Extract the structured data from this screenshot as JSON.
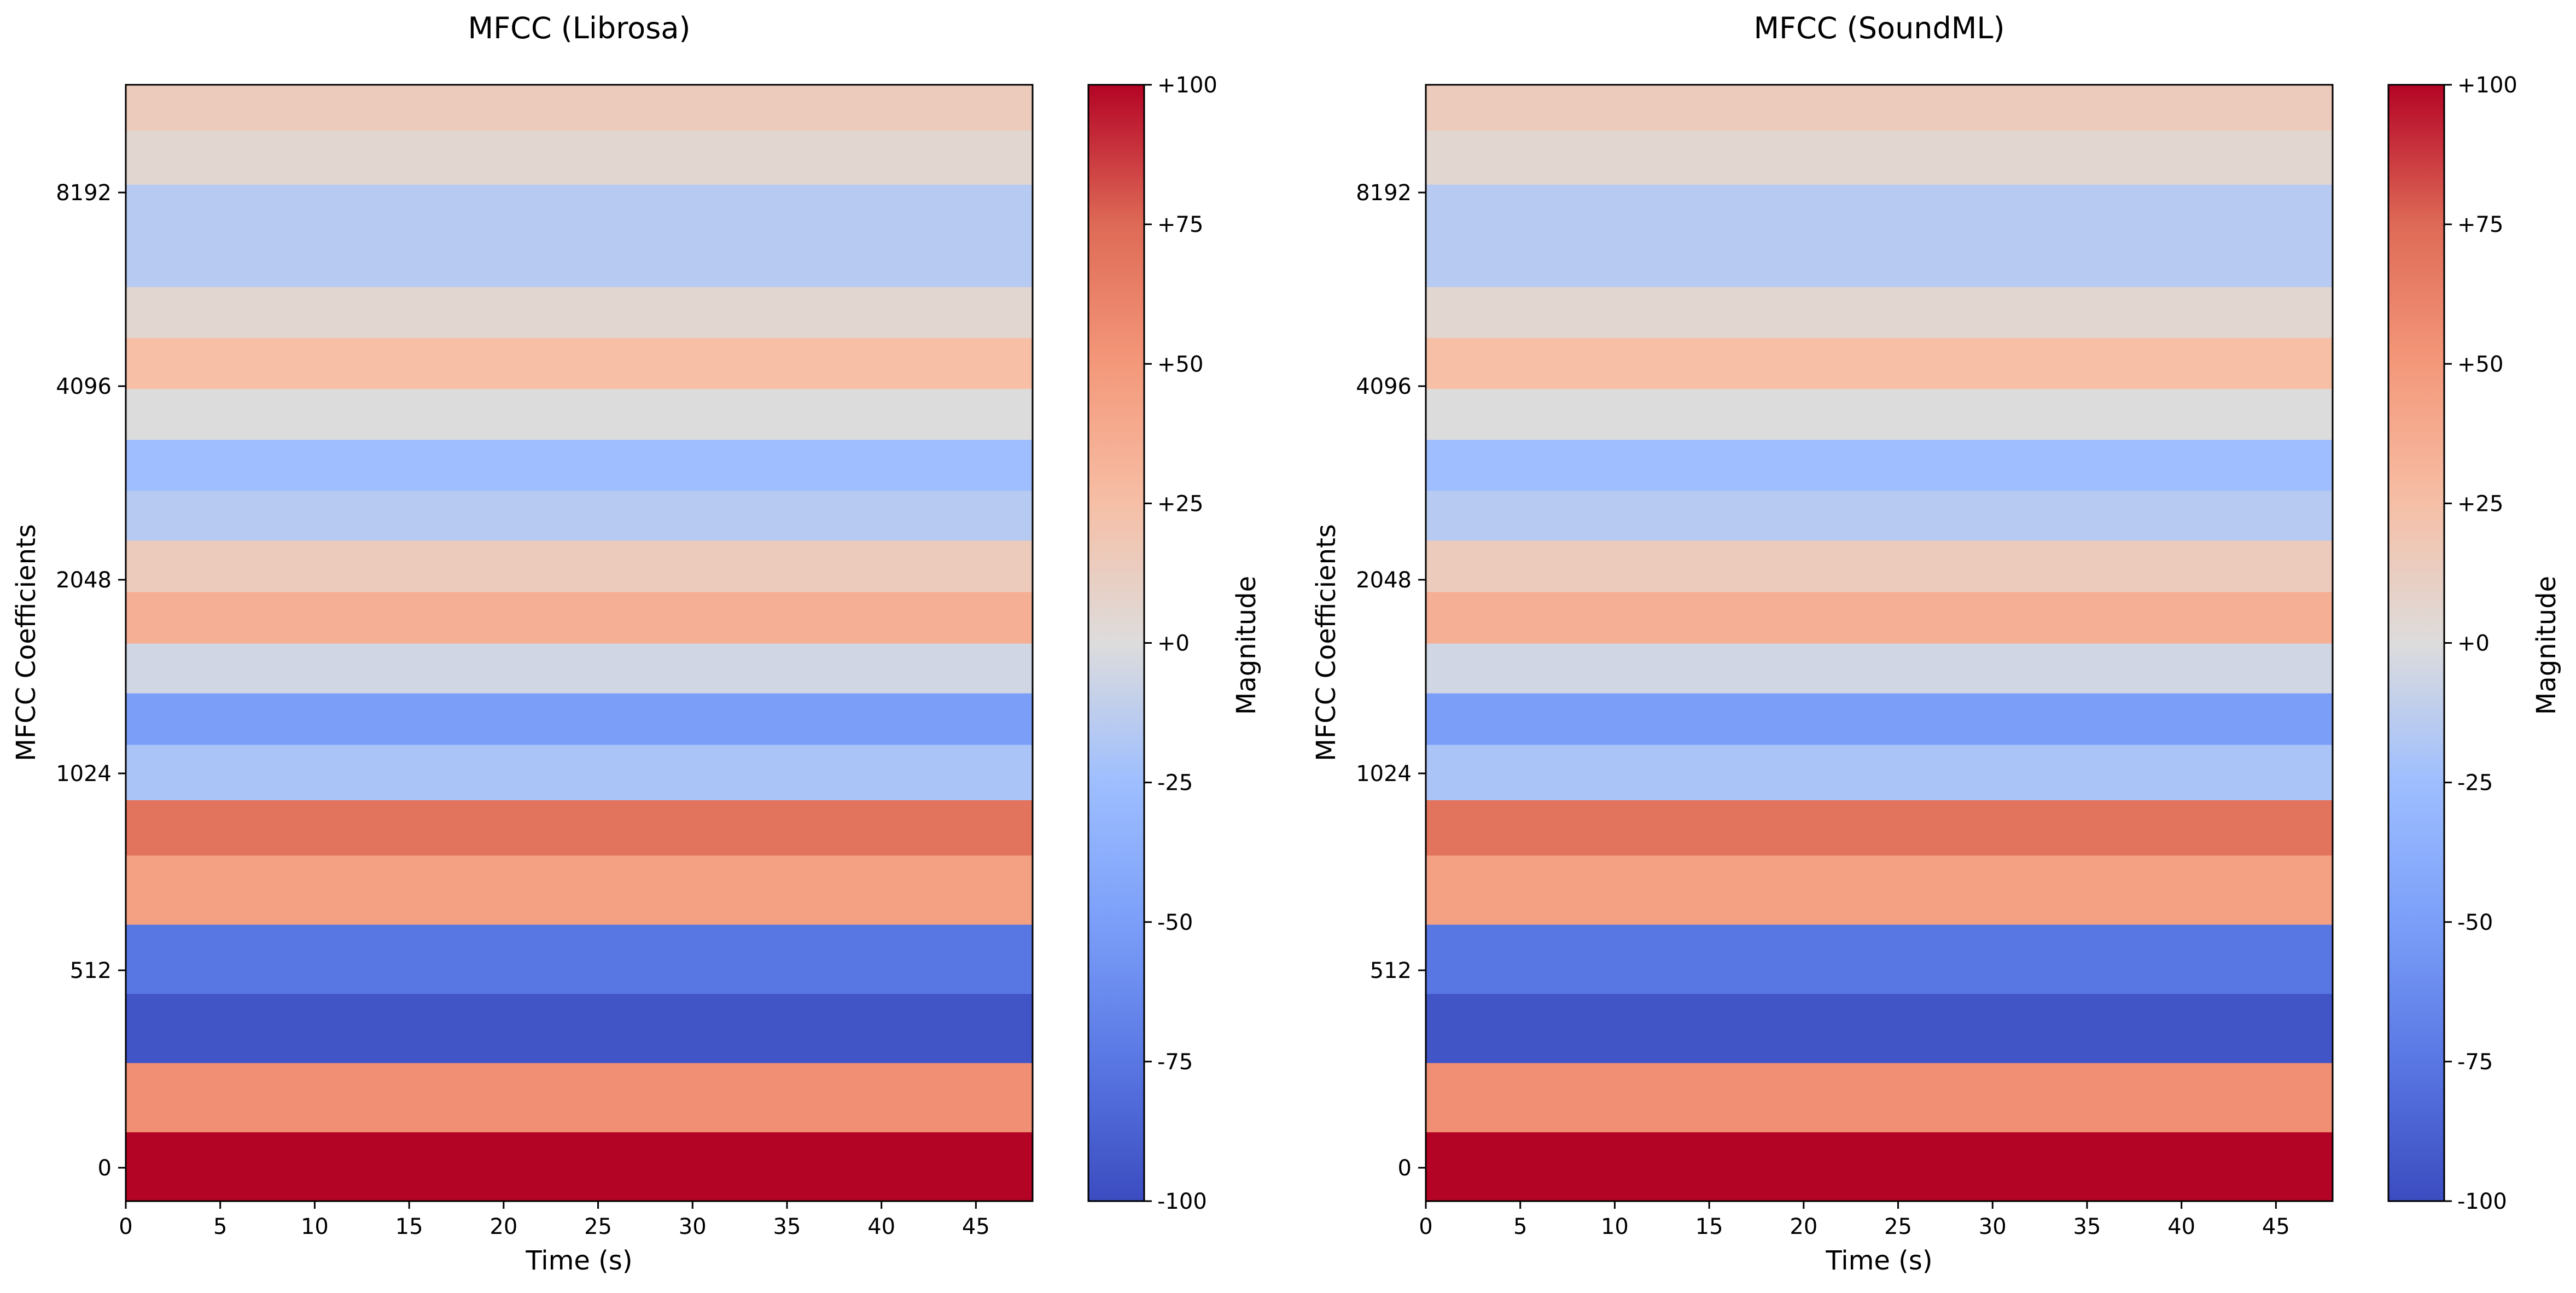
{
  "chart_data": [
    {
      "type": "heatmap",
      "title": "MFCC (Librosa)",
      "xlabel": "Time (s)",
      "ylabel": "MFCC Coefficients",
      "xlim": [
        0,
        48
      ],
      "x_ticks": [
        "0",
        "5",
        "10",
        "15",
        "20",
        "25",
        "30",
        "35",
        "40",
        "45"
      ],
      "y_ticks": [
        "0",
        "512",
        "1024",
        "2048",
        "4096",
        "8192"
      ],
      "colorbar": {
        "label": "Magnitude",
        "range": [
          -100,
          100
        ],
        "ticks": [
          "+100",
          "+75",
          "+50",
          "+25",
          "+0",
          "-25",
          "-50",
          "-75",
          "-100"
        ],
        "colormap": "coolwarm"
      },
      "rows_bottom_to_top": [
        {
          "coefficient": 0,
          "value": 100
        },
        {
          "coefficient": 1,
          "value": 55
        },
        {
          "coefficient": 2,
          "value": -95
        },
        {
          "coefficient": 3,
          "value": -75
        },
        {
          "coefficient": 4,
          "value": 45
        },
        {
          "coefficient": 5,
          "value": 70
        },
        {
          "coefficient": 6,
          "value": -20
        },
        {
          "coefficient": 7,
          "value": -50
        },
        {
          "coefficient": 8,
          "value": -5
        },
        {
          "coefficient": 9,
          "value": 35
        },
        {
          "coefficient": 10,
          "value": 15
        },
        {
          "coefficient": 11,
          "value": -15
        },
        {
          "coefficient": 12,
          "value": -25
        },
        {
          "coefficient": 13,
          "value": 0
        },
        {
          "coefficient": 14,
          "value": 25
        },
        {
          "coefficient": 15,
          "value": 5
        },
        {
          "coefficient": 16,
          "value": -15
        },
        {
          "coefficient": 17,
          "value": 5
        },
        {
          "coefficient": 18,
          "value": 15
        }
      ]
    },
    {
      "type": "heatmap",
      "title": "MFCC (SoundML)",
      "xlabel": "Time (s)",
      "ylabel": "MFCC Coefficients",
      "xlim": [
        0,
        48
      ],
      "x_ticks": [
        "0",
        "5",
        "10",
        "15",
        "20",
        "25",
        "30",
        "35",
        "40",
        "45"
      ],
      "y_ticks": [
        "0",
        "512",
        "1024",
        "2048",
        "4096",
        "8192"
      ],
      "colorbar": {
        "label": "Magnitude",
        "range": [
          -100,
          100
        ],
        "ticks": [
          "+100",
          "+75",
          "+50",
          "+25",
          "+0",
          "-25",
          "-50",
          "-75",
          "-100"
        ],
        "colormap": "coolwarm"
      },
      "rows_bottom_to_top": [
        {
          "coefficient": 0,
          "value": 100
        },
        {
          "coefficient": 1,
          "value": 55
        },
        {
          "coefficient": 2,
          "value": -95
        },
        {
          "coefficient": 3,
          "value": -75
        },
        {
          "coefficient": 4,
          "value": 45
        },
        {
          "coefficient": 5,
          "value": 70
        },
        {
          "coefficient": 6,
          "value": -20
        },
        {
          "coefficient": 7,
          "value": -50
        },
        {
          "coefficient": 8,
          "value": -5
        },
        {
          "coefficient": 9,
          "value": 35
        },
        {
          "coefficient": 10,
          "value": 15
        },
        {
          "coefficient": 11,
          "value": -15
        },
        {
          "coefficient": 12,
          "value": -25
        },
        {
          "coefficient": 13,
          "value": 0
        },
        {
          "coefficient": 14,
          "value": 25
        },
        {
          "coefficient": 15,
          "value": 5
        },
        {
          "coefficient": 16,
          "value": -15
        },
        {
          "coefficient": 17,
          "value": 5
        },
        {
          "coefficient": 18,
          "value": 15
        }
      ]
    }
  ]
}
